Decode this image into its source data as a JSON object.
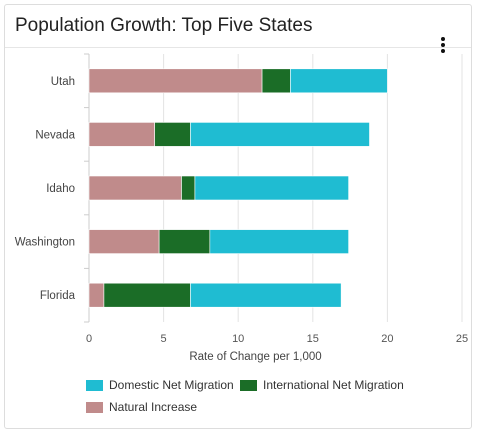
{
  "title": "Population Growth: Top Five States",
  "colors": {
    "Domestic Net Migration": "#1fbcd2",
    "International Net Migration": "#1b6d27",
    "Natural Increase": "#c08b8b"
  },
  "icons": {
    "menu": "vertical-ellipsis-icon"
  },
  "chart_data": {
    "type": "bar",
    "orientation": "horizontal",
    "stacked": true,
    "title": "Population Growth: Top Five States",
    "xlabel": "Rate of Change per 1,000",
    "ylabel": "",
    "xlim": [
      0,
      25
    ],
    "xticks": [
      0,
      5,
      10,
      15,
      20,
      25
    ],
    "grid": true,
    "legend_position": "bottom",
    "categories": [
      "Utah",
      "Nevada",
      "Idaho",
      "Washington",
      "Florida"
    ],
    "series": [
      {
        "name": "Natural Increase",
        "values": [
          11.6,
          4.4,
          6.2,
          4.7,
          1.0
        ]
      },
      {
        "name": "International Net Migration",
        "values": [
          1.9,
          2.4,
          0.9,
          3.4,
          5.8
        ]
      },
      {
        "name": "Domestic Net Migration",
        "values": [
          6.5,
          12.0,
          10.3,
          9.3,
          10.1
        ]
      }
    ]
  },
  "legend": [
    {
      "label": "Domestic Net Migration"
    },
    {
      "label": "International Net Migration"
    },
    {
      "label": "Natural Increase"
    }
  ]
}
